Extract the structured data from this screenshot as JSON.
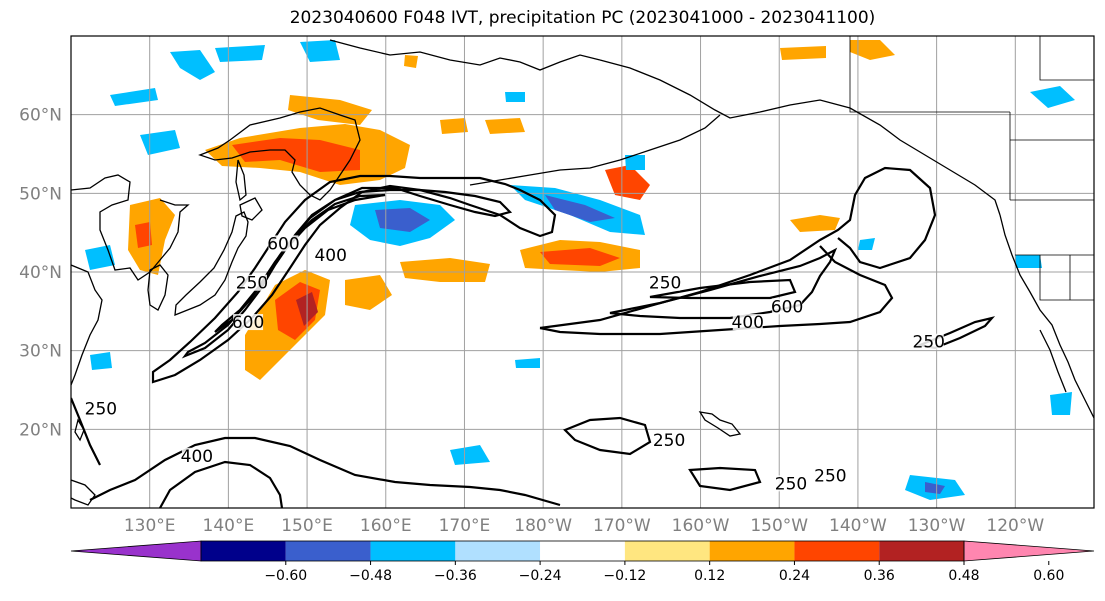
{
  "title": "2023040600 F048 IVT, precipitation PC (2023041000 - 2023041100)",
  "map": {
    "lat_ticks": [
      {
        "value": 60,
        "label": "60°N"
      },
      {
        "value": 50,
        "label": "50°N"
      },
      {
        "value": 40,
        "label": "40°N"
      },
      {
        "value": 30,
        "label": "30°N"
      },
      {
        "value": 20,
        "label": "20°N"
      }
    ],
    "lon_ticks": [
      {
        "value": 130,
        "label": "130°E"
      },
      {
        "value": 140,
        "label": "140°E"
      },
      {
        "value": 150,
        "label": "150°E"
      },
      {
        "value": 160,
        "label": "160°E"
      },
      {
        "value": 170,
        "label": "170°E"
      },
      {
        "value": 180,
        "label": "180°W"
      },
      {
        "value": 190,
        "label": "170°W"
      },
      {
        "value": 200,
        "label": "160°W"
      },
      {
        "value": 210,
        "label": "150°W"
      },
      {
        "value": 220,
        "label": "140°W"
      },
      {
        "value": 230,
        "label": "130°W"
      },
      {
        "value": 240,
        "label": "120°W"
      }
    ],
    "extent": {
      "lon_min": 120,
      "lon_max": 250,
      "lat_min": 10,
      "lat_max": 70
    },
    "grid": true,
    "ivt_contour_levels": [
      250,
      400,
      600
    ],
    "contour_labels": [
      {
        "text": "250",
        "lon": 123.8,
        "lat": 22
      },
      {
        "text": "400",
        "lon": 136,
        "lat": 16
      },
      {
        "text": "250",
        "lon": 143,
        "lat": 38
      },
      {
        "text": "600",
        "lon": 147,
        "lat": 43
      },
      {
        "text": "600",
        "lon": 142.5,
        "lat": 33
      },
      {
        "text": "400",
        "lon": 153,
        "lat": 41.5
      },
      {
        "text": "250",
        "lon": 195.5,
        "lat": 38
      },
      {
        "text": "400",
        "lon": 206,
        "lat": 33
      },
      {
        "text": "600",
        "lon": 211,
        "lat": 35
      },
      {
        "text": "250",
        "lon": 229,
        "lat": 30.5
      },
      {
        "text": "250",
        "lon": 196,
        "lat": 18
      },
      {
        "text": "250",
        "lon": 211.5,
        "lat": 12.5
      },
      {
        "text": "250",
        "lon": 216.5,
        "lat": 13.5
      }
    ]
  },
  "colorbar": {
    "ticks": [
      "−0.60",
      "−0.48",
      "−0.36",
      "−0.24",
      "−0.12",
      "0.12",
      "0.24",
      "0.36",
      "0.48",
      "0.60"
    ],
    "colors": [
      "#9932cc",
      "#00008b",
      "#3a5fcd",
      "#00bfff",
      "#b0e0ff",
      "#ffffff",
      "#ffe680",
      "#ffa500",
      "#ff4500",
      "#b22222",
      "#ff86b0"
    ]
  },
  "colors": {
    "coast": "#000000",
    "grid": "#a0a0a0",
    "ivt_contour": "#000000"
  }
}
